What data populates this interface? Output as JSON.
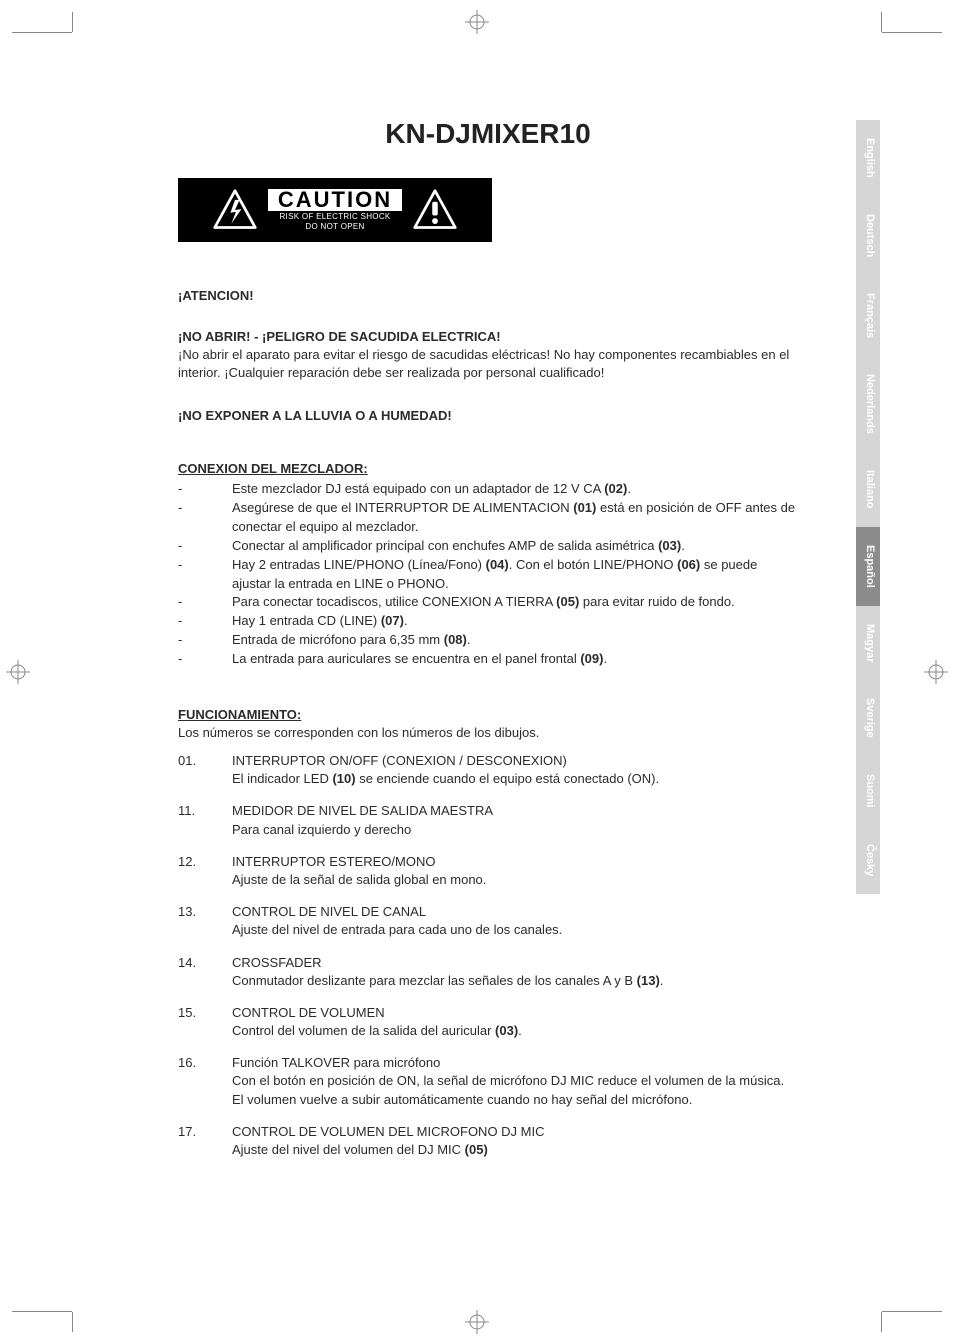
{
  "title": "KN-DJMIXER10",
  "caution": {
    "word": "CAUTION",
    "line1": "RISK OF ELECTRIC SHOCK",
    "line2": "DO NOT OPEN"
  },
  "lang_tabs": [
    {
      "label": "English",
      "active": false
    },
    {
      "label": "Deutsch",
      "active": false
    },
    {
      "label": "Français",
      "active": false
    },
    {
      "label": "Nederlands",
      "active": false
    },
    {
      "label": "Italiano",
      "active": false
    },
    {
      "label": "Español",
      "active": true
    },
    {
      "label": "Magyar",
      "active": false
    },
    {
      "label": "Sverige",
      "active": false
    },
    {
      "label": "Suomi",
      "active": false
    },
    {
      "label": "Česky",
      "active": false
    }
  ],
  "atencion": {
    "heading": "¡ATENCION!",
    "no_abrir_head": "¡NO ABRIR! - ¡PELIGRO DE SACUDIDA ELECTRICA!",
    "no_abrir_body": "¡No abrir el aparato para evitar el riesgo de sacudidas eléctricas! No hay componentes recambiables en el interior. ¡Cualquier reparación debe ser realizada por personal cualificado!",
    "no_exponer": "¡NO EXPONER A LA LLUVIA O A HUMEDAD!"
  },
  "conexion": {
    "heading": "CONEXION DEL MEZCLADOR:",
    "items": [
      "Este mezclador DJ está equipado con un adaptador de 12 V CA <b>(02)</b>.",
      "Asegúrese de que el INTERRUPTOR DE ALIMENTACION <b>(01)</b> está en posición de OFF antes de conectar el equipo al mezclador.",
      "Conectar al amplificador principal con enchufes AMP de salida asimétrica <b>(03)</b>.",
      "Hay 2 entradas LINE/PHONO (Línea/Fono) <b>(04)</b>. Con el botón LINE/PHONO <b>(06)</b> se puede ajustar la entrada en LINE o PHONO.",
      "Para conectar tocadiscos, utilice CONEXION A TIERRA <b>(05)</b> para evitar ruido de fondo.",
      "Hay 1 entrada CD (LINE) <b>(07)</b>.",
      "Entrada de micrófono para 6,35 mm <b>(08)</b>.",
      "La entrada para auriculares se encuentra en el panel frontal <b>(09)</b>."
    ]
  },
  "func": {
    "heading": "FUNCIONAMIENTO:",
    "intro": "Los números se corresponden con los números de los dibujos.",
    "items": [
      {
        "num": "01.",
        "title": "INTERRUPTOR ON/OFF (CONEXION / DESCONEXION)",
        "sub": "El indicador LED <b>(10)</b> se enciende cuando el equipo está conectado (ON)."
      },
      {
        "num": "11.",
        "title": "MEDIDOR DE NIVEL DE SALIDA MAESTRA",
        "sub": "Para canal izquierdo y derecho"
      },
      {
        "num": "12.",
        "title": "INTERRUPTOR ESTEREO/MONO",
        "sub": "Ajuste de la señal de salida global en mono."
      },
      {
        "num": "13.",
        "title": "CONTROL DE NIVEL DE CANAL",
        "sub": "Ajuste del nivel de entrada para cada uno de los canales."
      },
      {
        "num": "14.",
        "title": "CROSSFADER",
        "sub": "Conmutador deslizante para mezclar las señales de los canales A y B <b>(13)</b>."
      },
      {
        "num": "15.",
        "title": "CONTROL DE VOLUMEN",
        "sub": "Control del volumen de la salida del auricular <b>(03)</b>."
      },
      {
        "num": "16.",
        "title": "Función TALKOVER para micrófono",
        "sub": "Con el botón en posición de ON, la señal de micrófono DJ MIC reduce el volumen de la música. El volumen vuelve a subir automáticamente cuando no hay señal del micrófono."
      },
      {
        "num": "17.",
        "title": "CONTROL DE VOLUMEN DEL MICROFONO DJ MIC",
        "sub": "Ajuste del nivel del volumen del DJ MIC <b>(05)</b>"
      }
    ]
  },
  "colors": {
    "tab_inactive_bg": "#d6d6d6",
    "tab_active_bg": "#8c8c8c",
    "tab_text": "#ffffff",
    "text": "#2b2b2b"
  }
}
